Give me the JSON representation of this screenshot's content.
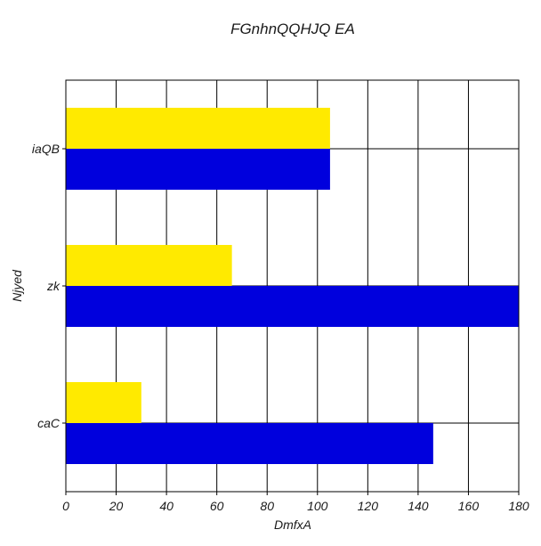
{
  "chart_data": {
    "type": "bar",
    "orientation": "horizontal",
    "title": "FGnhnQQHJQ EA",
    "xlabel": "DmfxA",
    "ylabel": "Njyed",
    "categories": [
      "caC",
      "zk",
      "iaQB"
    ],
    "series": [
      {
        "color": "#0000dd",
        "values": [
          146,
          180,
          105
        ]
      },
      {
        "color": "#ffea00",
        "values": [
          30,
          66,
          105
        ]
      }
    ],
    "xlim": [
      0,
      180
    ],
    "xticks": [
      0,
      20,
      40,
      60,
      80,
      100,
      120,
      140,
      160,
      180
    ],
    "grid": true,
    "legend": "none"
  }
}
